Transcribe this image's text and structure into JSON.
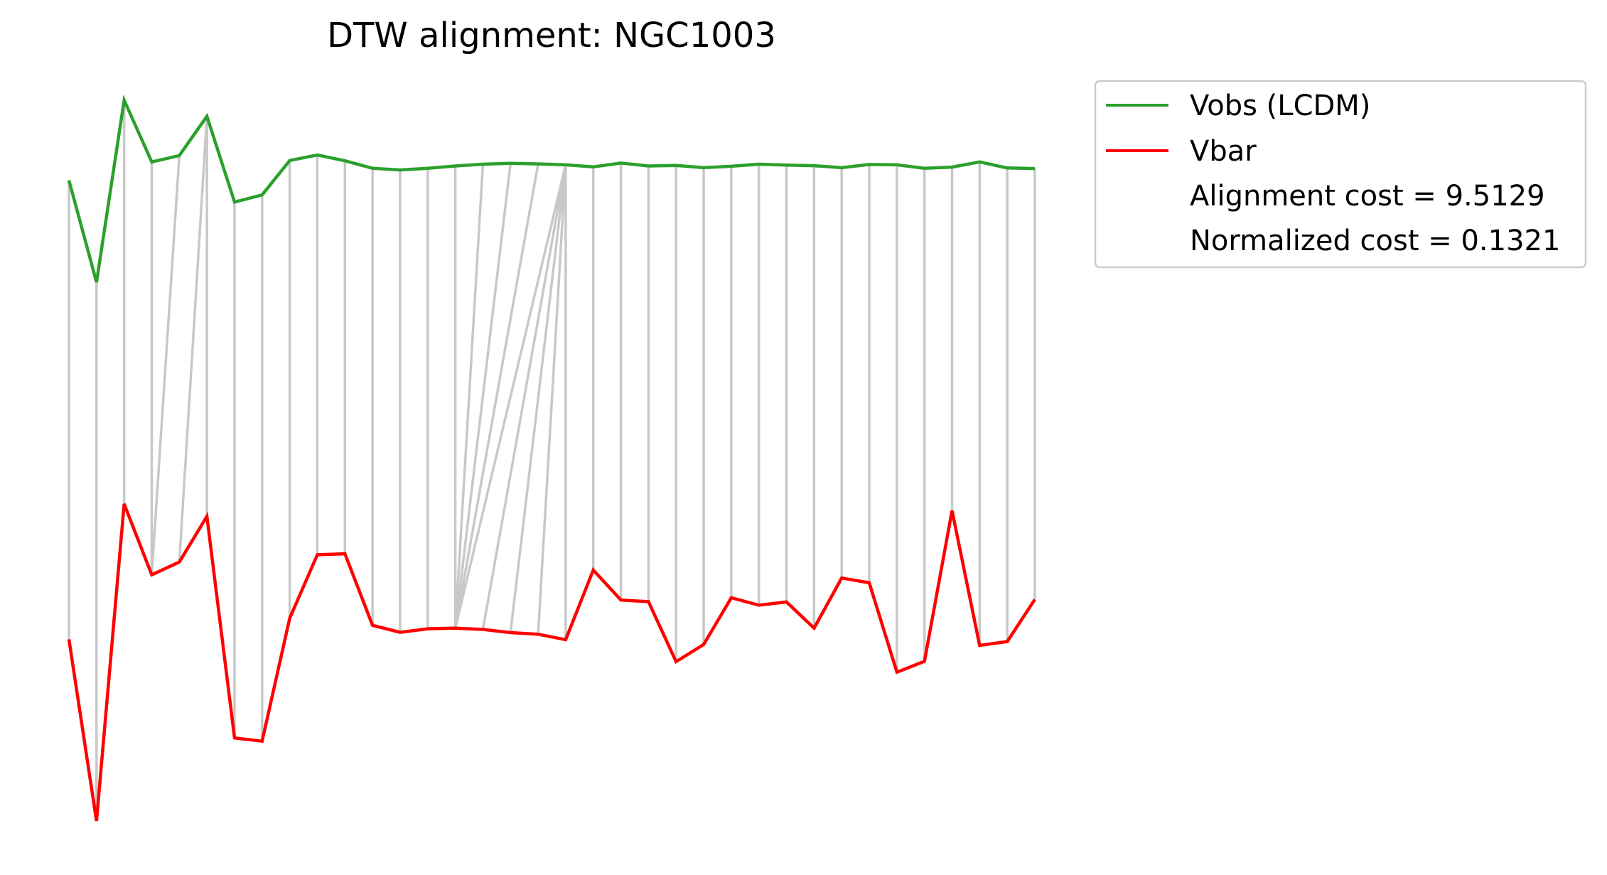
{
  "chart_data": {
    "type": "line",
    "title": "DTW alignment: NGC1003",
    "xlabel": "",
    "ylabel": "",
    "axes_visible": false,
    "grid": false,
    "legend_position": "upper-right outside",
    "x": [
      0,
      1,
      2,
      3,
      4,
      5,
      6,
      7,
      8,
      9,
      10,
      11,
      12,
      13,
      14,
      15,
      16,
      17,
      18,
      19,
      20,
      21,
      22,
      23,
      24,
      25,
      26,
      27,
      28,
      29,
      30,
      31,
      32,
      33,
      34,
      35
    ],
    "series": [
      {
        "name": "Vobs (LCDM)",
        "color": "#2ca02c",
        "values": [
          3.55,
          0.0,
          6.34,
          4.19,
          4.41,
          5.78,
          2.79,
          3.04,
          4.24,
          4.43,
          4.23,
          3.97,
          3.91,
          3.97,
          4.05,
          4.11,
          4.14,
          4.12,
          4.09,
          4.02,
          4.15,
          4.05,
          4.07,
          3.99,
          4.04,
          4.11,
          4.08,
          4.06,
          3.99,
          4.1,
          4.09,
          3.97,
          4.01,
          4.19,
          3.98,
          3.96
        ]
      },
      {
        "name": "Vbar",
        "color": "#ff0000",
        "values": [
          5.69,
          0.0,
          9.93,
          7.71,
          8.11,
          9.54,
          2.6,
          2.5,
          6.35,
          8.34,
          8.37,
          6.13,
          5.91,
          6.02,
          6.04,
          6.0,
          5.9,
          5.85,
          5.68,
          7.86,
          6.92,
          6.87,
          4.99,
          5.53,
          6.99,
          6.76,
          6.86,
          6.04,
          7.61,
          7.46,
          4.66,
          5.0,
          9.72,
          5.5,
          5.62,
          6.94
        ]
      }
    ],
    "alignment_path": [
      [
        0,
        0
      ],
      [
        1,
        1
      ],
      [
        2,
        2
      ],
      [
        3,
        3
      ],
      [
        4,
        3
      ],
      [
        5,
        4
      ],
      [
        5,
        5
      ],
      [
        6,
        6
      ],
      [
        7,
        7
      ],
      [
        8,
        8
      ],
      [
        9,
        9
      ],
      [
        10,
        10
      ],
      [
        11,
        11
      ],
      [
        12,
        12
      ],
      [
        13,
        13
      ],
      [
        14,
        14
      ],
      [
        15,
        14
      ],
      [
        16,
        14
      ],
      [
        17,
        14
      ],
      [
        18,
        14
      ],
      [
        18,
        15
      ],
      [
        18,
        16
      ],
      [
        18,
        17
      ],
      [
        18,
        18
      ],
      [
        19,
        19
      ],
      [
        20,
        20
      ],
      [
        21,
        21
      ],
      [
        22,
        22
      ],
      [
        23,
        23
      ],
      [
        24,
        24
      ],
      [
        25,
        25
      ],
      [
        26,
        26
      ],
      [
        27,
        27
      ],
      [
        28,
        28
      ],
      [
        29,
        29
      ],
      [
        30,
        30
      ],
      [
        31,
        31
      ],
      [
        32,
        32
      ],
      [
        33,
        33
      ],
      [
        34,
        34
      ],
      [
        35,
        35
      ]
    ],
    "alignment_line_color": "#c8c8c8",
    "legend": {
      "entries": [
        {
          "label": "Vobs (LCDM)",
          "color": "#2ca02c"
        },
        {
          "label": "Vbar",
          "color": "#ff0000"
        }
      ],
      "extra_text": [
        "Alignment cost = 9.5129",
        "Normalized cost = 0.1321"
      ]
    }
  }
}
